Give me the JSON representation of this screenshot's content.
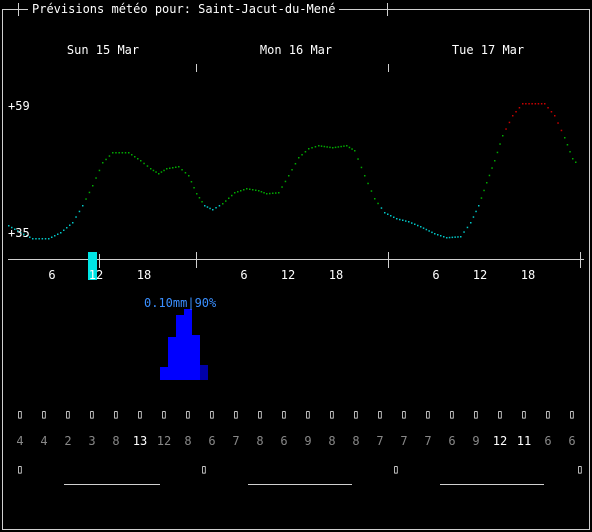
{
  "window": {
    "title": "Prévisions météo pour: Saint-Jacut-du-Mené"
  },
  "days": [
    "Sun 15 Mar",
    "Mon 16 Mar",
    "Tue 17 Mar"
  ],
  "temperature": {
    "max_label": "+59",
    "min_label": "+35",
    "colors": {
      "cold": "#00c8c8",
      "mild": "#00aa00",
      "warm": "#c80000"
    }
  },
  "hour_labels": [
    "6",
    "12",
    "18",
    "6",
    "12",
    "18",
    "6",
    "12",
    "18"
  ],
  "rain": {
    "label": "0.10mm|90%",
    "color": "#0000ff"
  },
  "current_time_marker": {
    "color": "#00e5e5"
  },
  "weather_symbols": [
    "▯",
    "▯",
    "▯",
    "▯",
    "▯",
    "▯",
    "▯",
    "▯",
    "▯",
    "▯",
    "▯",
    "▯",
    "▯",
    "▯",
    "▯",
    "▯",
    "▯",
    "▯",
    "▯",
    "▯",
    "▯",
    "▯",
    "▯",
    "▯"
  ],
  "wind_speeds": [
    "4",
    "4",
    "2",
    "3",
    "8",
    "13",
    "12",
    "8",
    "6",
    "7",
    "8",
    "6",
    "9",
    "8",
    "8",
    "7",
    "7",
    "7",
    "6",
    "9",
    "12",
    "11",
    "6",
    "6"
  ],
  "wind_highlight": [
    false,
    false,
    false,
    false,
    false,
    true,
    false,
    false,
    false,
    false,
    false,
    false,
    false,
    false,
    false,
    false,
    false,
    false,
    false,
    false,
    true,
    true,
    false,
    false
  ],
  "moon_symbols": [
    "▯",
    "▯",
    "▯",
    "▯"
  ]
}
